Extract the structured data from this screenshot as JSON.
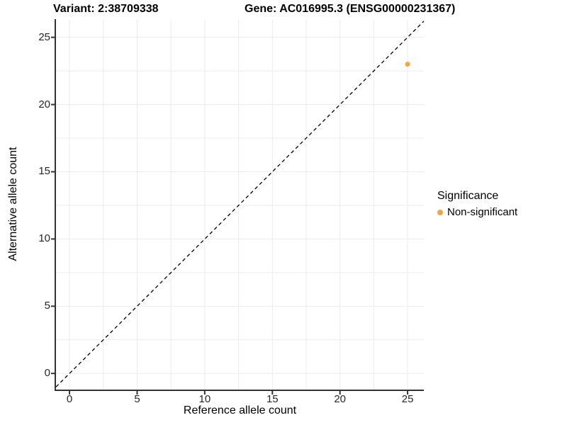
{
  "header": {
    "variant_title": "Variant: 2:38709338",
    "gene_title": "Gene: AC016995.3 (ENSG00000231367)"
  },
  "chart_data": {
    "type": "scatter",
    "title": "Variant: 2:38709338   Gene: AC016995.3 (ENSG00000231367)",
    "xlabel": "Reference allele count",
    "ylabel": "Alternative allele count",
    "xlim": [
      -1.0,
      26.2
    ],
    "ylim": [
      -1.2,
      26.3
    ],
    "x_ticks": [
      0,
      5,
      10,
      15,
      20,
      25
    ],
    "y_ticks": [
      0,
      5,
      10,
      15,
      20,
      25
    ],
    "grid": true,
    "grid_interval": 2.5,
    "points": [
      {
        "x": 25,
        "y": 23,
        "series": "Non-significant"
      }
    ],
    "reference_line": {
      "kind": "identity",
      "style": "dashed",
      "color": "#000000"
    },
    "legend": {
      "title": "Significance",
      "position": "right",
      "entries": [
        {
          "label": "Non-significant",
          "color": "#F9A242"
        }
      ]
    },
    "colors": {
      "point": "#F9A242",
      "grid": "#EBEBEB",
      "axis": "#333333",
      "tick_text": "#262626",
      "background": "#FFFFFF"
    }
  }
}
